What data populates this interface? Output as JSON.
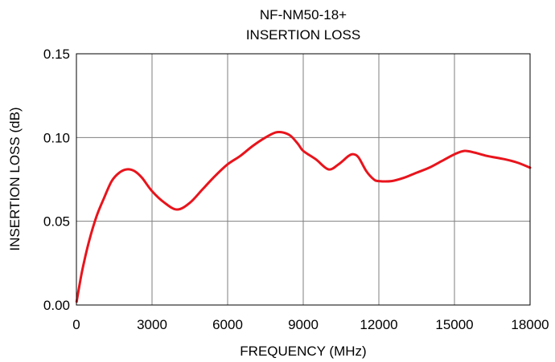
{
  "chart_data": {
    "type": "line",
    "title": [
      "NF-NM50-18+",
      "INSERTION LOSS"
    ],
    "xlabel": "FREQUENCY (MHz)",
    "ylabel": "INSERTION LOSS (dB)",
    "xlim": [
      0,
      18000
    ],
    "ylim": [
      0,
      0.15
    ],
    "x_ticks": [
      0,
      3000,
      6000,
      9000,
      12000,
      15000,
      18000
    ],
    "x_tick_labels": [
      "0",
      "3000",
      "6000",
      "9000",
      "12000",
      "15000",
      "18000"
    ],
    "y_ticks": [
      0,
      0.05,
      0.1,
      0.15
    ],
    "y_tick_labels": [
      "0.00",
      "0.05",
      "0.10",
      "0.15"
    ],
    "grid": true,
    "series": [
      {
        "color": "#e8141c",
        "x": [
          10,
          100,
          250,
          500,
          800,
          1100,
          1400,
          1700,
          2000,
          2300,
          2600,
          3000,
          3500,
          4000,
          4500,
          5000,
          5500,
          6000,
          6500,
          7000,
          7500,
          7900,
          8200,
          8500,
          8800,
          9000,
          9500,
          10000,
          10400,
          10800,
          11000,
          11200,
          11500,
          11800,
          12000,
          12500,
          13000,
          13500,
          14000,
          14500,
          15000,
          15400,
          15800,
          16300,
          17000,
          17500,
          18000
        ],
        "y": [
          0.002,
          0.01,
          0.022,
          0.038,
          0.053,
          0.064,
          0.074,
          0.079,
          0.081,
          0.08,
          0.076,
          0.068,
          0.061,
          0.057,
          0.061,
          0.069,
          0.077,
          0.084,
          0.089,
          0.095,
          0.1,
          0.103,
          0.103,
          0.101,
          0.096,
          0.092,
          0.087,
          0.081,
          0.084,
          0.089,
          0.09,
          0.088,
          0.08,
          0.075,
          0.074,
          0.074,
          0.076,
          0.079,
          0.082,
          0.086,
          0.09,
          0.092,
          0.091,
          0.089,
          0.087,
          0.085,
          0.082
        ]
      }
    ]
  }
}
